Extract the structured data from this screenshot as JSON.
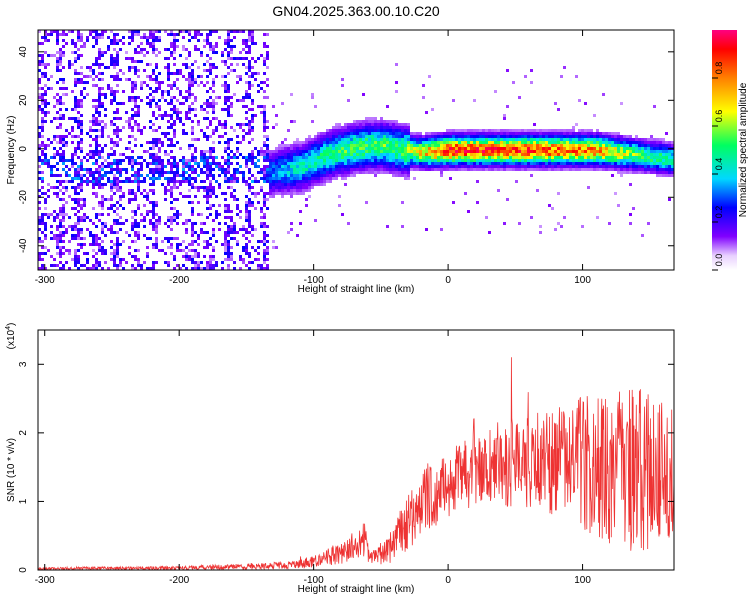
{
  "title": "GN04.2025.363.00.10.C20",
  "chart_data": [
    {
      "type": "heatmap",
      "xlabel": "Height of straight line (km)",
      "ylabel": "Frequency (Hz)",
      "xlim": [
        -305,
        168
      ],
      "ylim": [
        -50,
        49
      ],
      "xticks": [
        -300,
        -200,
        -100,
        0,
        100
      ],
      "yticks": [
        -40,
        -20,
        0,
        20,
        40
      ],
      "colorbar": {
        "label": "Normalized spectral amplitude",
        "range": [
          0,
          1
        ],
        "ticks": [
          "0.0",
          "0.2",
          "0.4",
          "0.6",
          "0.8"
        ],
        "colors": [
          "#ffffff",
          "#8000ff",
          "#0000ff",
          "#00e0ff",
          "#00ff60",
          "#ffff00",
          "#ff8000",
          "#ff0000",
          "#ff0080"
        ]
      },
      "ridge": {
        "x": [
          -145,
          -130,
          -110,
          -90,
          -70,
          -50,
          -35,
          -20,
          0,
          40,
          80,
          110,
          140,
          168
        ],
        "y": [
          -12,
          -9,
          -7,
          -2,
          1,
          2,
          0,
          -1,
          0,
          0,
          0,
          0,
          -2,
          -4
        ],
        "level": [
          0.3,
          0.35,
          0.45,
          0.5,
          0.55,
          0.55,
          0.55,
          0.7,
          0.9,
          0.9,
          0.85,
          0.8,
          0.55,
          0.5
        ]
      }
    },
    {
      "type": "line",
      "xlabel": "Height of straight line (km)",
      "ylabel": "SNR (10 * v/v)",
      "yscale_label": "(x10",
      "yscale_exp": "4",
      "xlim": [
        -305,
        168
      ],
      "ylim": [
        0,
        3.5
      ],
      "xticks": [
        -300,
        -200,
        -100,
        0,
        100
      ],
      "yticks": [
        0,
        1,
        2,
        3
      ],
      "color": "#ee3333",
      "envelope": {
        "x": [
          -305,
          -200,
          -150,
          -120,
          -100,
          -80,
          -70,
          -62,
          -58,
          -50,
          -40,
          -30,
          -20,
          0,
          20,
          40,
          60,
          80,
          100,
          120,
          140,
          168
        ],
        "y": [
          0.02,
          0.03,
          0.05,
          0.07,
          0.12,
          0.25,
          0.35,
          0.45,
          0.18,
          0.2,
          0.4,
          0.7,
          0.95,
          1.25,
          1.45,
          1.55,
          1.6,
          1.6,
          1.55,
          1.5,
          1.4,
          1.5
        ],
        "amp": [
          0.015,
          0.02,
          0.03,
          0.04,
          0.06,
          0.12,
          0.15,
          0.18,
          0.08,
          0.1,
          0.2,
          0.3,
          0.35,
          0.35,
          0.4,
          0.45,
          0.5,
          0.6,
          0.7,
          0.8,
          0.9,
          0.7
        ]
      }
    }
  ]
}
